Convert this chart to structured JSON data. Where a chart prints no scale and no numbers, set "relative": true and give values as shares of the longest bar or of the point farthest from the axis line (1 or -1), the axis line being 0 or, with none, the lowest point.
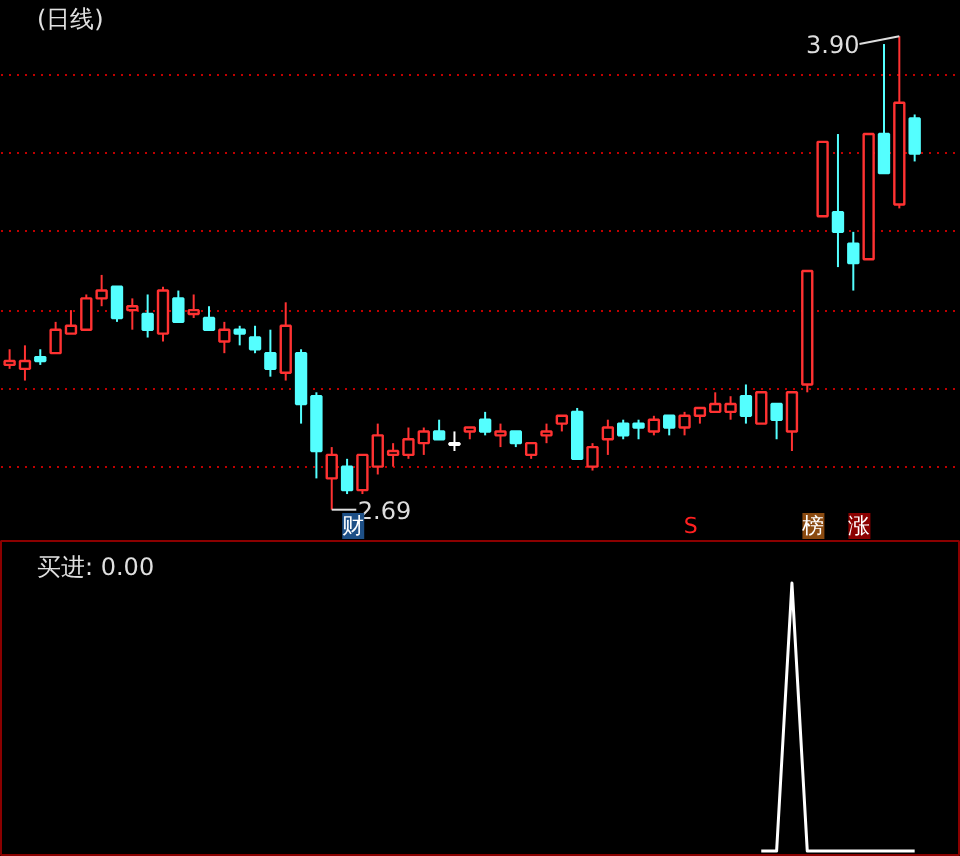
{
  "chart_data": [
    {
      "type": "candlestick",
      "title": "(日线)",
      "categories": [
        null,
        null,
        null,
        null,
        null,
        null,
        null,
        null,
        null,
        null,
        null,
        null,
        null,
        null,
        null,
        null,
        null,
        null,
        null,
        null,
        null,
        null,
        null,
        null,
        null,
        null,
        null,
        null,
        null,
        null,
        null,
        null,
        null,
        null,
        null,
        null,
        null,
        null,
        null,
        null,
        null,
        null,
        null,
        null,
        null,
        null,
        null,
        null,
        null,
        null,
        null,
        null,
        null,
        null,
        null,
        null,
        null,
        null,
        null,
        null
      ],
      "ohlc": [
        [
          3.06,
          3.1,
          3.05,
          3.07
        ],
        [
          3.05,
          3.11,
          3.02,
          3.07
        ],
        [
          3.08,
          3.1,
          3.06,
          3.07
        ],
        [
          3.09,
          3.17,
          3.09,
          3.15
        ],
        [
          3.14,
          3.2,
          3.14,
          3.16
        ],
        [
          3.15,
          3.24,
          3.15,
          3.23
        ],
        [
          3.23,
          3.29,
          3.21,
          3.25
        ],
        [
          3.26,
          3.26,
          3.17,
          3.18
        ],
        [
          3.2,
          3.23,
          3.15,
          3.21
        ],
        [
          3.19,
          3.24,
          3.13,
          3.15
        ],
        [
          3.14,
          3.26,
          3.12,
          3.25
        ],
        [
          3.23,
          3.25,
          3.17,
          3.17
        ],
        [
          3.19,
          3.24,
          3.18,
          3.2
        ],
        [
          3.18,
          3.21,
          3.15,
          3.15
        ],
        [
          3.12,
          3.17,
          3.09,
          3.15
        ],
        [
          3.15,
          3.16,
          3.11,
          3.14
        ],
        [
          3.13,
          3.16,
          3.09,
          3.1
        ],
        [
          3.09,
          3.15,
          3.03,
          3.05
        ],
        [
          3.04,
          3.22,
          3.02,
          3.16
        ],
        [
          3.09,
          3.1,
          2.91,
          2.96
        ],
        [
          2.98,
          2.99,
          2.77,
          2.84
        ],
        [
          2.77,
          2.85,
          2.69,
          2.83
        ],
        [
          2.8,
          2.82,
          2.73,
          2.74
        ],
        [
          2.74,
          2.83,
          2.73,
          2.83
        ],
        [
          2.8,
          2.91,
          2.78,
          2.88
        ],
        [
          2.83,
          2.86,
          2.8,
          2.84
        ],
        [
          2.83,
          2.9,
          2.82,
          2.87
        ],
        [
          2.86,
          2.9,
          2.83,
          2.89
        ],
        [
          2.89,
          2.92,
          2.87,
          2.87
        ],
        [
          2.86,
          2.89,
          2.84,
          2.86
        ],
        [
          2.89,
          2.9,
          2.87,
          2.9
        ],
        [
          2.92,
          2.94,
          2.88,
          2.89
        ],
        [
          2.88,
          2.91,
          2.85,
          2.89
        ],
        [
          2.89,
          2.89,
          2.85,
          2.86
        ],
        [
          2.83,
          2.86,
          2.82,
          2.86
        ],
        [
          2.88,
          2.91,
          2.86,
          2.89
        ],
        [
          2.91,
          2.93,
          2.89,
          2.93
        ],
        [
          2.94,
          2.95,
          2.82,
          2.82
        ],
        [
          2.8,
          2.86,
          2.79,
          2.85
        ],
        [
          2.87,
          2.92,
          2.83,
          2.9
        ],
        [
          2.91,
          2.92,
          2.87,
          2.88
        ],
        [
          2.91,
          2.92,
          2.87,
          2.9
        ],
        [
          2.89,
          2.93,
          2.88,
          2.92
        ],
        [
          2.93,
          2.93,
          2.88,
          2.9
        ],
        [
          2.9,
          2.94,
          2.88,
          2.93
        ],
        [
          2.93,
          2.95,
          2.91,
          2.95
        ],
        [
          2.94,
          2.99,
          2.94,
          2.96
        ],
        [
          2.94,
          2.98,
          2.92,
          2.96
        ],
        [
          2.98,
          3.01,
          2.91,
          2.93
        ],
        [
          2.91,
          2.99,
          2.91,
          2.99
        ],
        [
          2.96,
          2.96,
          2.87,
          2.92
        ],
        [
          2.89,
          2.99,
          2.84,
          2.99
        ],
        [
          3.01,
          3.3,
          2.99,
          3.3
        ],
        [
          3.44,
          3.63,
          3.44,
          3.63
        ],
        [
          3.45,
          3.65,
          3.31,
          3.4
        ],
        [
          3.37,
          3.4,
          3.25,
          3.32
        ],
        [
          3.33,
          3.65,
          3.33,
          3.65
        ],
        [
          3.65,
          3.88,
          3.55,
          3.55
        ],
        [
          3.47,
          3.9,
          3.46,
          3.73
        ],
        [
          3.69,
          3.7,
          3.58,
          3.6
        ]
      ],
      "colors": [
        "#ff3232",
        "#ff3232",
        "#54ffff",
        "#ff3232",
        "#ff3232",
        "#ff3232",
        "#ff3232",
        "#54ffff",
        "#ff3232",
        "#54ffff",
        "#ff3232",
        "#54ffff",
        "#ff3232",
        "#54ffff",
        "#ff3232",
        "#54ffff",
        "#54ffff",
        "#54ffff",
        "#ff3232",
        "#54ffff",
        "#54ffff",
        "#ff3232",
        "#54ffff",
        "#ff3232",
        "#ff3232",
        "#ff3232",
        "#ff3232",
        "#ff3232",
        "#54ffff",
        "#ffffff",
        "#ff3232",
        "#54ffff",
        "#ff3232",
        "#54ffff",
        "#ff3232",
        "#ff3232",
        "#ff3232",
        "#54ffff",
        "#ff3232",
        "#ff3232",
        "#54ffff",
        "#54ffff",
        "#ff3232",
        "#54ffff",
        "#ff3232",
        "#ff3232",
        "#ff3232",
        "#ff3232",
        "#54ffff",
        "#ff3232",
        "#54ffff",
        "#ff3232",
        "#ff3232",
        "#ff3232",
        "#54ffff",
        "#54ffff",
        "#ff3232",
        "#54ffff",
        "#ff3232",
        "#54ffff"
      ],
      "ylim": [
        2.61,
        3.99
      ],
      "yticks": [
        {
          "value": 2.8,
          "label": null
        },
        {
          "value": 3.0,
          "label": null
        },
        {
          "value": 3.2,
          "label": null
        },
        {
          "value": 3.4,
          "label": null
        },
        {
          "value": 3.6,
          "label": null
        },
        {
          "value": 3.8,
          "label": null
        }
      ],
      "grid": "y",
      "tick_labels": false,
      "annotations": [
        "3.90",
        "2.69",
        "财",
        "S",
        "榜",
        "涨"
      ]
    },
    {
      "type": "line",
      "title": "买进: 0.00",
      "relative": true,
      "color": "#ffffff",
      "tick_labels": false,
      "categories": [
        null,
        null,
        null,
        null,
        null,
        null,
        null,
        null,
        null,
        null,
        null,
        null,
        null,
        null,
        null,
        null,
        null,
        null,
        null,
        null,
        null,
        null,
        null,
        null,
        null,
        null,
        null,
        null,
        null,
        null,
        null,
        null,
        null,
        null,
        null,
        null,
        null,
        null,
        null,
        null,
        null,
        null,
        null,
        null,
        null,
        null,
        null,
        null,
        null,
        null,
        null,
        null,
        null,
        null,
        null,
        null,
        null,
        null,
        null,
        null
      ],
      "values": [
        null,
        null,
        null,
        null,
        null,
        null,
        null,
        null,
        null,
        null,
        null,
        null,
        null,
        null,
        null,
        null,
        null,
        null,
        null,
        null,
        null,
        null,
        null,
        null,
        null,
        null,
        null,
        null,
        null,
        null,
        null,
        null,
        null,
        null,
        null,
        null,
        null,
        null,
        null,
        null,
        null,
        null,
        null,
        null,
        null,
        null,
        null,
        null,
        null,
        0,
        0,
        1,
        0,
        0,
        0,
        0,
        0,
        0,
        0,
        0
      ]
    }
  ]
}
